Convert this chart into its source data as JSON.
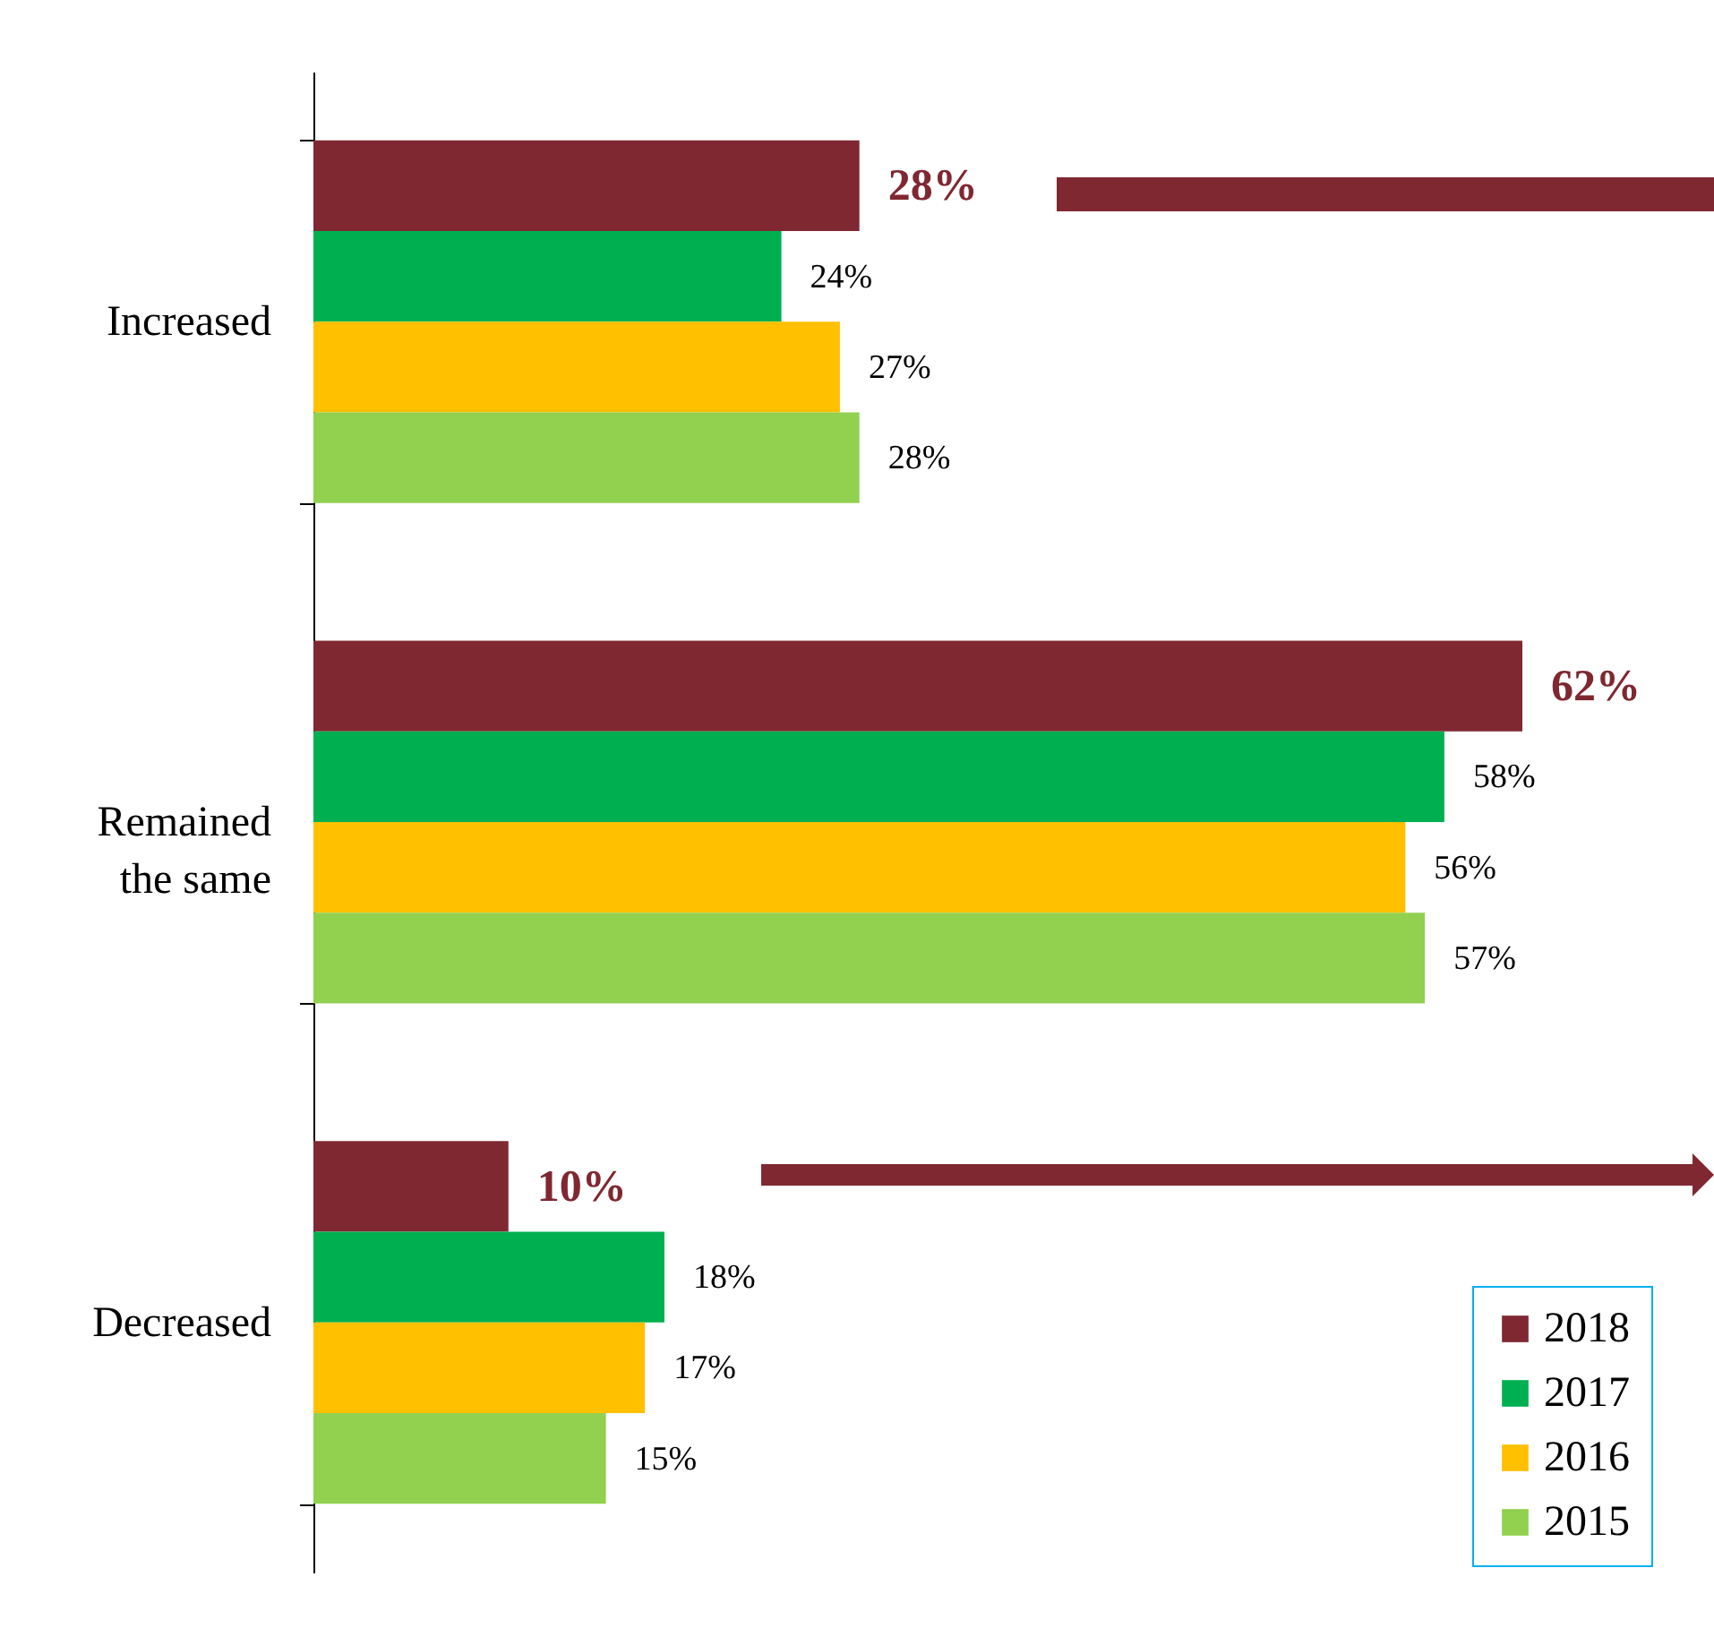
{
  "chart_data": {
    "type": "bar",
    "orientation": "horizontal",
    "categories": [
      "Increased",
      "Remained the same",
      "Decreased"
    ],
    "series": [
      {
        "name": "2018",
        "color": "#7f2831",
        "values": [
          28,
          62,
          10
        ],
        "value_labels": [
          "28%",
          "62%",
          "10%"
        ]
      },
      {
        "name": "2017",
        "color": "#00b050",
        "values": [
          24,
          58,
          18
        ],
        "value_labels": [
          "24%",
          "58%",
          "18%"
        ]
      },
      {
        "name": "2016",
        "color": "#ffc000",
        "values": [
          27,
          56,
          17
        ],
        "value_labels": [
          "27%",
          "56%",
          "17%"
        ]
      },
      {
        "name": "2015",
        "color": "#92d050",
        "values": [
          28,
          57,
          15
        ],
        "value_labels": [
          "28%",
          "57%",
          "15%"
        ]
      }
    ],
    "legend": "bottom right",
    "grid": false
  }
}
